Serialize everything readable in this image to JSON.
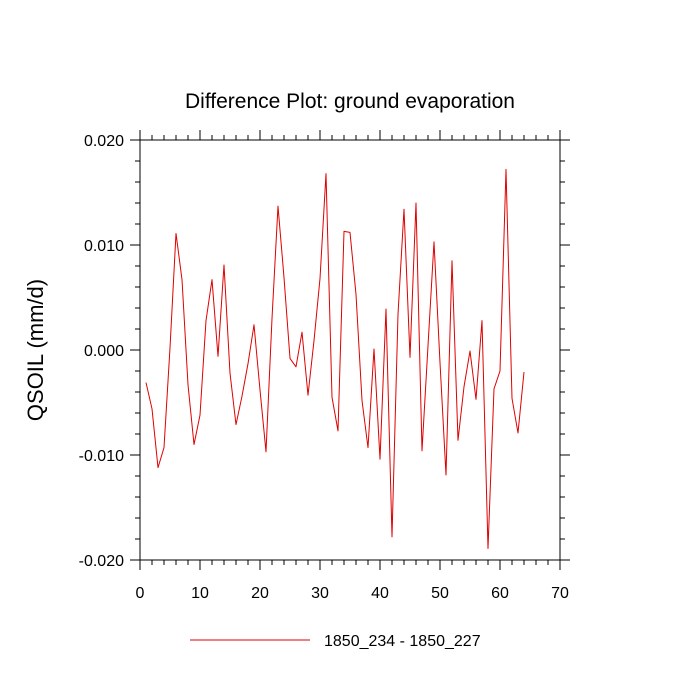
{
  "chart_data": {
    "type": "line",
    "title": "Difference Plot: ground evaporation",
    "xlabel": "",
    "ylabel": "QSOIL  (mm/d)",
    "xlim": [
      0,
      70
    ],
    "ylim": [
      -0.02,
      0.02
    ],
    "x_ticks": [
      0,
      10,
      20,
      30,
      40,
      50,
      60,
      70
    ],
    "x_tick_labels": [
      "0",
      "10",
      "20",
      "30",
      "40",
      "50",
      "60",
      "70"
    ],
    "y_ticks": [
      -0.02,
      -0.01,
      0.0,
      0.01,
      0.02
    ],
    "y_tick_labels": [
      "-0.020",
      "-0.010",
      "0.000",
      "0.010",
      "0.020"
    ],
    "grid": false,
    "legend_position": "bottom-center",
    "series": [
      {
        "name": "1850_234 - 1850_227",
        "color": "#e00000",
        "x": [
          1,
          2,
          3,
          4,
          5,
          6,
          7,
          8,
          9,
          10,
          11,
          12,
          13,
          14,
          15,
          16,
          17,
          18,
          19,
          20,
          21,
          22,
          23,
          24,
          25,
          26,
          27,
          28,
          29,
          30,
          31,
          32,
          33,
          34,
          35,
          36,
          37,
          38,
          39,
          40,
          41,
          42,
          43,
          44,
          45,
          46,
          47,
          48,
          49,
          50,
          51,
          52,
          53,
          54,
          55,
          56,
          57,
          58,
          59,
          60,
          61,
          62,
          63,
          64
        ],
        "values": [
          -0.0031,
          -0.0056,
          -0.0112,
          -0.0093,
          0.0002,
          0.0111,
          0.0067,
          -0.0033,
          -0.009,
          -0.0062,
          0.0028,
          0.0067,
          -0.0006,
          0.0081,
          -0.0022,
          -0.0071,
          -0.0044,
          -0.0013,
          0.0024,
          -0.0038,
          -0.0097,
          0.003,
          0.0137,
          0.0069,
          -0.0008,
          -0.0016,
          0.0017,
          -0.0043,
          0.0009,
          0.0068,
          0.0168,
          -0.0045,
          -0.0077,
          0.0113,
          0.0112,
          0.0053,
          -0.0048,
          -0.0093,
          0.0001,
          -0.0104,
          0.0039,
          -0.0178,
          0.0034,
          0.0134,
          -0.0007,
          0.014,
          -0.0096,
          0.0004,
          0.0103,
          -0.0012,
          -0.0119,
          0.0085,
          -0.0086,
          -0.0035,
          -0.0001,
          -0.0047,
          0.0028,
          -0.0189,
          -0.0037,
          -0.002,
          0.0172,
          -0.0046,
          -0.0079,
          -0.0021
        ]
      }
    ]
  }
}
